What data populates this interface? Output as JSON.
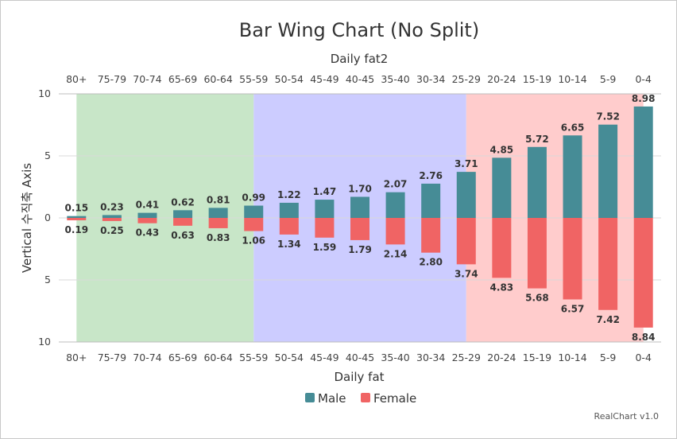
{
  "chart_data": {
    "type": "bar",
    "title": "Bar Wing Chart (No Split)",
    "xlabel": "Daily fat",
    "x2label": "Daily fat2",
    "ylabel": "Vertical 수직축 Axis",
    "categories": [
      "80+",
      "75-79",
      "70-74",
      "65-69",
      "60-64",
      "55-59",
      "50-54",
      "45-49",
      "40-45",
      "35-40",
      "30-34",
      "25-29",
      "20-24",
      "15-19",
      "10-14",
      "5-9",
      "0-4"
    ],
    "series": [
      {
        "name": "Male",
        "color": "#468c96",
        "direction": "up",
        "values": [
          0.15,
          0.23,
          0.41,
          0.62,
          0.81,
          0.99,
          1.22,
          1.47,
          1.7,
          2.07,
          2.76,
          3.71,
          4.85,
          5.72,
          6.65,
          7.52,
          8.98
        ]
      },
      {
        "name": "Female",
        "color": "#f06464",
        "direction": "down",
        "values": [
          0.19,
          0.25,
          0.43,
          0.63,
          0.83,
          1.06,
          1.34,
          1.59,
          1.79,
          2.14,
          2.8,
          3.74,
          4.83,
          5.68,
          6.57,
          7.42,
          8.84
        ]
      }
    ],
    "yticks": [
      "10",
      "5",
      "0",
      "5",
      "10"
    ],
    "ylim": [
      -10,
      10
    ],
    "bands": [
      {
        "from": "80+",
        "to": "55-59",
        "color": "#c8e6c8"
      },
      {
        "from": "55-59",
        "to": "25-29",
        "color": "#ccccff"
      },
      {
        "from": "25-29",
        "to": "0-4",
        "color": "#ffcccc"
      }
    ],
    "grid": true,
    "legend": "bottom",
    "credit": "RealChart v1.0"
  }
}
